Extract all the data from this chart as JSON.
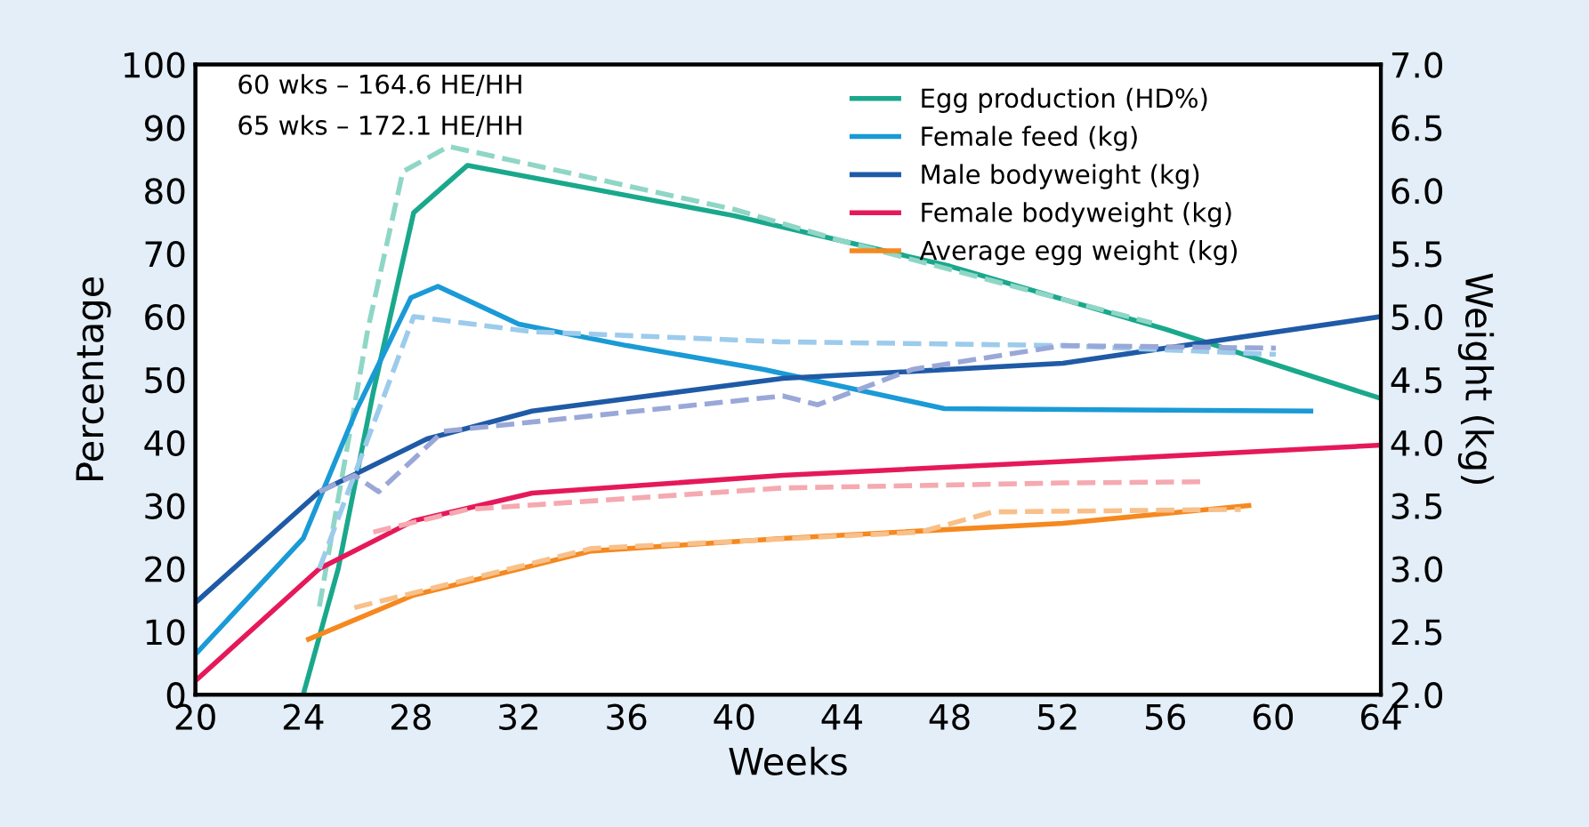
{
  "chart_data": {
    "type": "line",
    "xlabel": "Weeks",
    "ylabel": "Percentage",
    "y2label": "Weight (kg)",
    "annotations": [
      "60 wks – 164.6 HE/HH",
      "65 wks – 172.1 HE/HH"
    ],
    "xlim": [
      20,
      64
    ],
    "xticks": [
      20,
      24,
      28,
      32,
      36,
      40,
      44,
      48,
      52,
      56,
      60,
      64
    ],
    "ylim": [
      0,
      100
    ],
    "yticks": [
      0,
      10,
      20,
      30,
      40,
      50,
      60,
      70,
      80,
      90,
      100
    ],
    "y2lim": [
      2.0,
      7.0
    ],
    "y2ticks": [
      {
        "value": 2.0,
        "label": "2.0"
      },
      {
        "value": 2.5,
        "label": "2.5"
      },
      {
        "value": 3.0,
        "label": "3.0"
      },
      {
        "value": 3.5,
        "label": "3.5"
      },
      {
        "value": 4.0,
        "label": "4.0"
      },
      {
        "value": 4.5,
        "label": "4.5"
      },
      {
        "value": 5.0,
        "label": "5.0"
      },
      {
        "value": 5.5,
        "label": "5.5"
      },
      {
        "value": 6.0,
        "label": "6.0"
      },
      {
        "value": 6.5,
        "label": "6.5"
      },
      {
        "value": 7.0,
        "label": "7.0"
      }
    ],
    "grid": false,
    "legend": "top right",
    "marker": "none",
    "series": [
      {
        "name": "Egg production (HD%)",
        "color": "#1aa88c",
        "line_style": "solid",
        "x": [
          24,
          25.3,
          26.6,
          28.1,
          30.1,
          40,
          48,
          56,
          64
        ],
        "values": [
          0,
          20,
          48,
          76.5,
          84,
          76,
          68,
          58,
          47
        ]
      },
      {
        "name": "Female feed (kg)",
        "color": "#1a9ad6",
        "line_style": "solid",
        "axis": "y2",
        "x": [
          20,
          24,
          26,
          28,
          29,
          32,
          36,
          41.1,
          47.8,
          61.4
        ],
        "values": [
          2.32,
          3.24,
          4.27,
          5.15,
          5.24,
          4.94,
          4.77,
          4.58,
          4.27,
          4.25
        ]
      },
      {
        "name": "Male bodyweight (kg)",
        "color": "#1f5aa6",
        "line_style": "solid",
        "axis": "y2",
        "x": [
          20,
          24.6,
          28.6,
          32.5,
          41.8,
          52.2,
          64
        ],
        "values": [
          2.73,
          3.61,
          4.03,
          4.25,
          4.51,
          4.63,
          5.0
        ]
      },
      {
        "name": "Female bodyweight (kg)",
        "color": "#e5195a",
        "line_style": "solid",
        "axis": "y2",
        "x": [
          20,
          24.6,
          28.1,
          32.5,
          41.8,
          52.2,
          64
        ],
        "values": [
          2.11,
          3.0,
          3.38,
          3.6,
          3.74,
          3.85,
          3.98
        ]
      },
      {
        "name": "Average egg weight (kg)",
        "color": "#f5891f",
        "line_style": "solid",
        "axis": "y2",
        "x": [
          24.2,
          28.1,
          34.7,
          41.8,
          52.2,
          59.1
        ],
        "values": [
          2.44,
          2.79,
          3.14,
          3.24,
          3.36,
          3.5
        ]
      },
      {
        "color": "#8fd6c6",
        "line_style": "dashed",
        "x": [
          24.6,
          26.4,
          27.7,
          29.4,
          40,
          44,
          55.5
        ],
        "values": [
          14,
          58,
          83,
          87,
          77,
          72,
          59
        ]
      },
      {
        "color": "#9ccbec",
        "line_style": "dashed",
        "axis": "y2",
        "x": [
          24.6,
          28.1,
          32.5,
          41.7,
          52.2,
          60.1
        ],
        "values": [
          3.0,
          5.0,
          4.88,
          4.8,
          4.77,
          4.7
        ]
      },
      {
        "color": "#9aa8d8",
        "line_style": "dashed",
        "axis": "y2",
        "x": [
          24.6,
          25.9,
          26.8,
          29.2,
          41.8,
          43.1,
          46.6,
          52.2,
          60.1
        ],
        "values": [
          3.61,
          3.74,
          3.61,
          4.09,
          4.37,
          4.3,
          4.58,
          4.77,
          4.75
        ]
      },
      {
        "color": "#f5a9b0",
        "line_style": "dashed",
        "axis": "y2",
        "x": [
          26.6,
          30.1,
          41.8,
          52.2,
          57.5
        ],
        "values": [
          3.29,
          3.47,
          3.64,
          3.68,
          3.69
        ]
      },
      {
        "color": "#f8c08a",
        "line_style": "dashed",
        "axis": "y2",
        "x": [
          25.9,
          34.7,
          46.9,
          49.6,
          58.8
        ],
        "values": [
          2.69,
          3.16,
          3.29,
          3.45,
          3.47
        ]
      }
    ]
  }
}
